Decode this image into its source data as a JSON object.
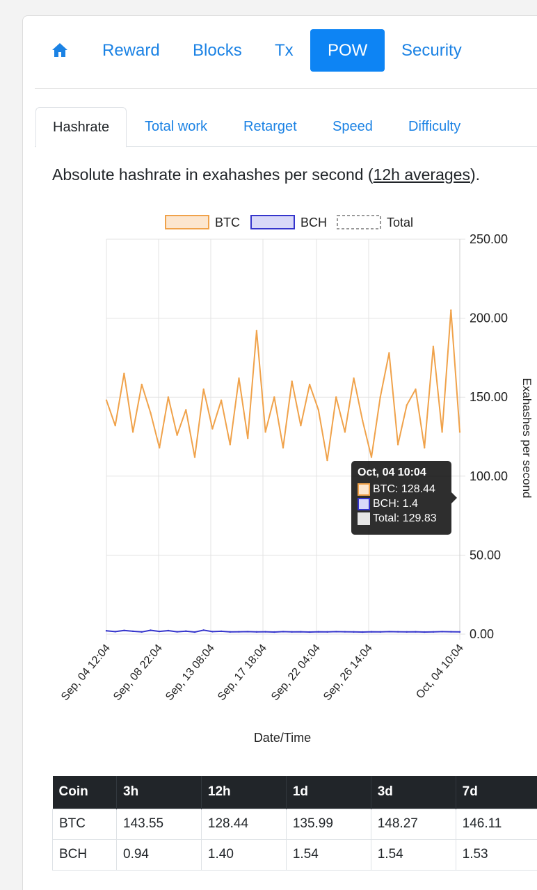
{
  "nav": {
    "home_icon": "home-icon",
    "items": [
      {
        "label": "Reward",
        "active": false
      },
      {
        "label": "Blocks",
        "active": false
      },
      {
        "label": "Tx",
        "active": false
      },
      {
        "label": "POW",
        "active": true
      },
      {
        "label": "Security",
        "active": false
      }
    ]
  },
  "subtabs": [
    {
      "label": "Hashrate",
      "active": true
    },
    {
      "label": "Total work",
      "active": false
    },
    {
      "label": "Retarget",
      "active": false
    },
    {
      "label": "Speed",
      "active": false
    },
    {
      "label": "Difficulty",
      "active": false
    }
  ],
  "description": {
    "text": "Absolute hashrate in exahashes per second (",
    "link": "12h averages",
    "suffix": ")."
  },
  "colors": {
    "btc": "#f0a24a",
    "btc_fill": "#fce6cf",
    "bch": "#3434cc",
    "bch_fill": "#d8d8f8",
    "accent": "#0d84f4",
    "link": "#1b82e4"
  },
  "chart_data": {
    "type": "line",
    "xlabel": "Date/Time",
    "ylabel": "Exahashes per second",
    "ylim": [
      0,
      250
    ],
    "y_ticks": [
      "0.00",
      "50.00",
      "100.00",
      "150.00",
      "200.00",
      "250.00"
    ],
    "x_ticks": [
      "Sep, 04 12:04",
      "Sep, 08 22:04",
      "Sep, 13 08:04",
      "Sep, 17 18:04",
      "Sep, 22 04:04",
      "Sep, 26 14:04",
      "Oct, 04 10:04"
    ],
    "legend": {
      "position": "top",
      "entries": [
        "BTC",
        "BCH",
        "Total"
      ]
    },
    "grid": true,
    "x": [
      "Sep, 04 12:04",
      "Sep, 05 06:04",
      "Sep, 06 00:04",
      "Sep, 06 18:04",
      "Sep, 07 12:04",
      "Sep, 08 06:04",
      "Sep, 08 22:04",
      "Sep, 09 16:04",
      "Sep, 10 10:04",
      "Sep, 11 04:04",
      "Sep, 11 22:04",
      "Sep, 12 16:04",
      "Sep, 13 08:04",
      "Sep, 14 02:04",
      "Sep, 14 20:04",
      "Sep, 15 14:04",
      "Sep, 16 08:04",
      "Sep, 17 02:04",
      "Sep, 17 18:04",
      "Sep, 18 12:04",
      "Sep, 19 06:04",
      "Sep, 20 00:04",
      "Sep, 20 18:04",
      "Sep, 21 12:04",
      "Sep, 22 04:04",
      "Sep, 22 22:04",
      "Sep, 23 16:04",
      "Sep, 24 10:04",
      "Sep, 25 04:04",
      "Sep, 25 22:04",
      "Sep, 26 14:04",
      "Sep, 27 08:04",
      "Sep, 28 02:04",
      "Sep, 28 20:04",
      "Sep, 29 14:04",
      "Sep, 30 08:04",
      "Oct, 01 02:04",
      "Oct, 01 20:04",
      "Oct, 02 14:04",
      "Oct, 03 08:04",
      "Oct, 04 10:04"
    ],
    "series": [
      {
        "name": "BTC",
        "values": [
          148,
          132,
          165,
          128,
          158,
          140,
          118,
          150,
          126,
          142,
          112,
          155,
          130,
          148,
          120,
          162,
          124,
          192,
          128,
          150,
          118,
          160,
          132,
          158,
          142,
          110,
          150,
          128,
          162,
          135,
          112,
          150,
          178,
          120,
          145,
          155,
          118,
          182,
          128,
          205,
          128
        ]
      },
      {
        "name": "BCH",
        "values": [
          2.1,
          1.6,
          2.3,
          1.8,
          1.4,
          2.4,
          1.7,
          2.2,
          1.5,
          1.9,
          1.3,
          2.5,
          1.6,
          1.8,
          1.4,
          1.5,
          1.6,
          1.4,
          1.5,
          1.3,
          1.6,
          1.4,
          1.5,
          1.3,
          1.5,
          1.4,
          1.6,
          1.5,
          1.4,
          1.3,
          1.5,
          1.4,
          1.6,
          1.5,
          1.4,
          1.5,
          1.3,
          1.4,
          1.6,
          1.5,
          1.4
        ]
      }
    ],
    "tooltip": {
      "title": "Oct, 04 10:04",
      "btc": "BTC: 128.44",
      "bch": "BCH: 1.4",
      "total": "Total: 129.83"
    }
  },
  "table": {
    "headers": [
      "Coin",
      "3h",
      "12h",
      "1d",
      "3d",
      "7d"
    ],
    "rows": [
      [
        "BTC",
        "143.55",
        "128.44",
        "135.99",
        "148.27",
        "146.11"
      ],
      [
        "BCH",
        "0.94",
        "1.40",
        "1.54",
        "1.54",
        "1.53"
      ]
    ]
  }
}
